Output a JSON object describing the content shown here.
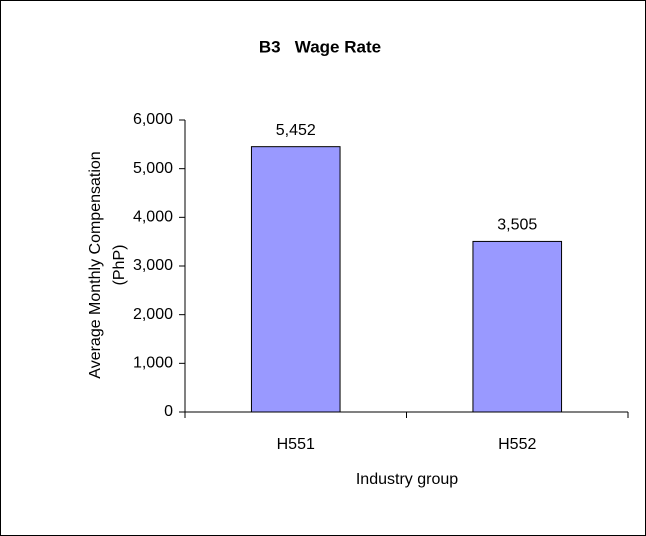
{
  "chart_data": {
    "type": "bar",
    "title": "B3   Wage Rate",
    "categories": [
      "H551",
      "H552"
    ],
    "values": [
      5452,
      3505
    ],
    "value_labels": [
      "5,452",
      "3,505"
    ],
    "color": "#9999ff",
    "xlabel": "Industry group",
    "ylabel": [
      "Average Monthly Compensation",
      "(PhP)"
    ],
    "ylim": [
      0,
      6000
    ],
    "yticks": [
      0,
      {
        "value": 1000,
        "label": "1,000"
      },
      {
        "value": 2000,
        "label": "2,000"
      },
      {
        "value": 3000,
        "label": "3,000"
      },
      {
        "value": 4000,
        "label": "4,000"
      },
      {
        "value": 5000,
        "label": "5,000"
      },
      {
        "value": 6000,
        "label": "6,000"
      }
    ],
    "grid": false
  }
}
